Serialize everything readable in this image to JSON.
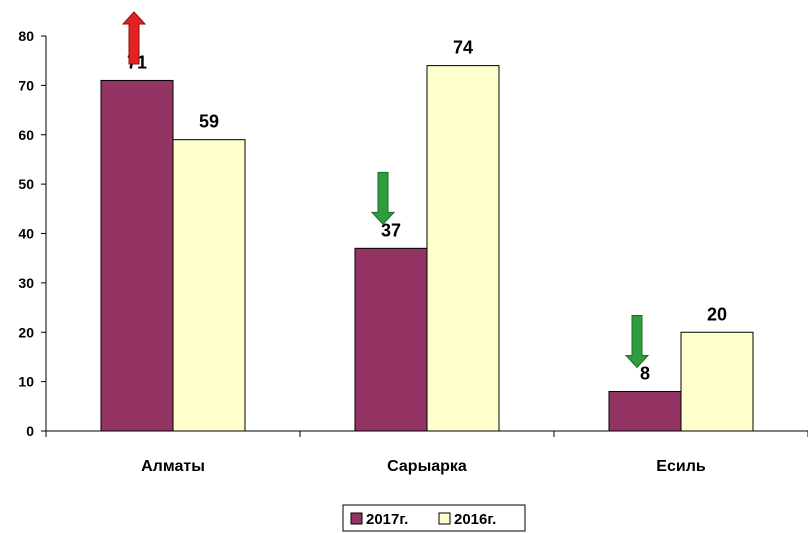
{
  "chart_data": {
    "type": "bar",
    "categories": [
      "Алматы",
      "Сарыарка",
      "Есиль"
    ],
    "series": [
      {
        "name": "2017г.",
        "values": [
          71,
          37,
          8
        ],
        "color": "#943464"
      },
      {
        "name": "2016г.",
        "values": [
          59,
          74,
          20
        ],
        "color": "#FFFFCC"
      }
    ],
    "ylim": [
      0,
      80
    ],
    "yticks": [
      0,
      10,
      20,
      30,
      40,
      50,
      60,
      70,
      80
    ],
    "grid": false,
    "legend_position": "bottom",
    "markers": [
      {
        "category": "Алматы",
        "direction": "up",
        "icon": "arrow-up-icon",
        "color": "#E52222"
      },
      {
        "category": "Сарыарка",
        "direction": "down",
        "icon": "arrow-down-icon",
        "color": "#2E9E3C"
      },
      {
        "category": "Есиль",
        "direction": "down",
        "icon": "arrow-down-icon",
        "color": "#2E9E3C"
      }
    ]
  }
}
